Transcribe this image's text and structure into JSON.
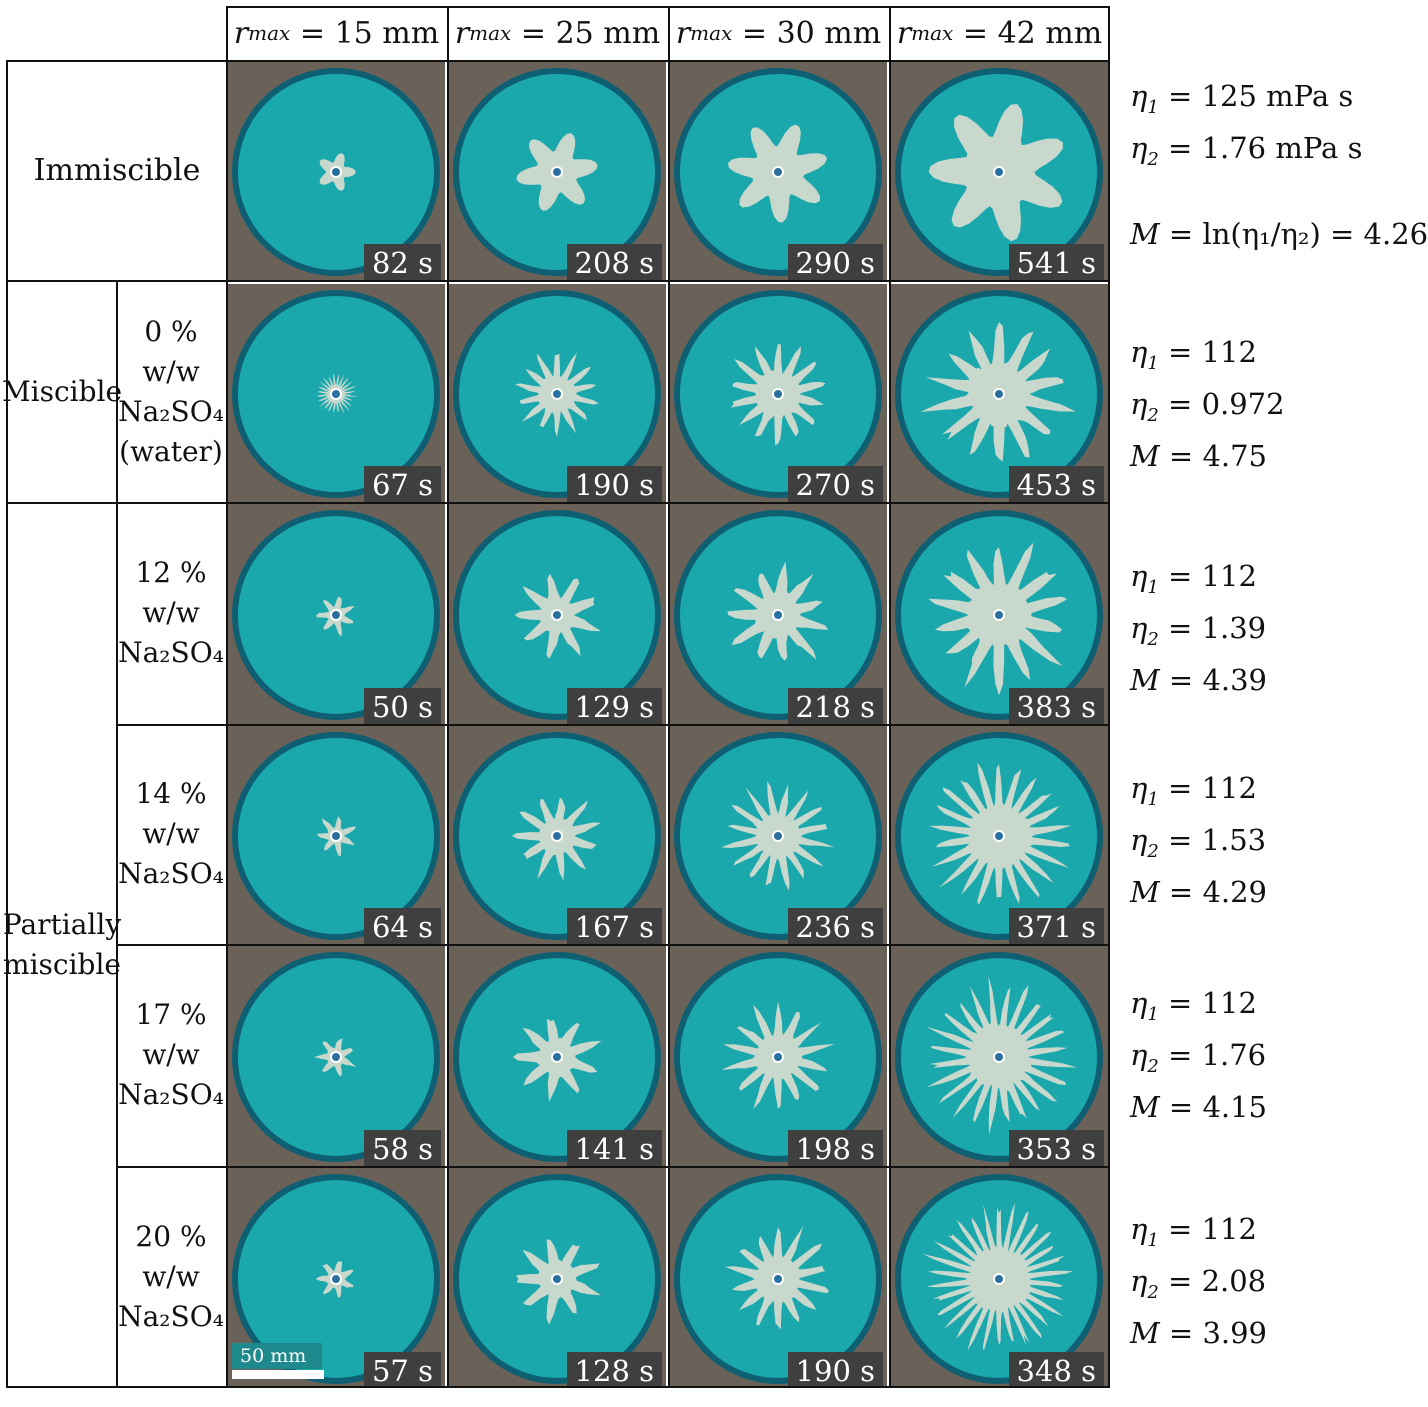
{
  "headers": {
    "columns": [
      {
        "label": "r",
        "subscript": "max",
        "value": "= 15 mm"
      },
      {
        "label": "r",
        "subscript": "max",
        "value": "= 25 mm"
      },
      {
        "label": "r",
        "subscript": "max",
        "value": "= 30 mm"
      },
      {
        "label": "r",
        "subscript": "max",
        "value": "= 42 mm"
      }
    ]
  },
  "rows": [
    {
      "group": "Immiscible",
      "condition": "",
      "times": [
        "82 s",
        "208 s",
        "290 s",
        "541 s"
      ],
      "params": {
        "eta1": "= 125 mPa s",
        "eta2": "= 1.76 mPa s",
        "M": "= ln(η₁/η₂) = 4.26"
      }
    },
    {
      "group": "Miscible",
      "condition": [
        "0 % w/w",
        "Na₂SO₄",
        "(water)"
      ],
      "times": [
        "67 s",
        "190 s",
        "270 s",
        "453 s"
      ],
      "params": {
        "eta1": "= 112",
        "eta2": "= 0.972",
        "M": "= 4.75"
      }
    },
    {
      "group": "Partially miscible",
      "condition": [
        "12 % w/w",
        "Na₂SO₄"
      ],
      "times": [
        "50 s",
        "129 s",
        "218 s",
        "383 s"
      ],
      "params": {
        "eta1": "= 112",
        "eta2": "= 1.39",
        "M": "= 4.39"
      }
    },
    {
      "group": "Partially miscible",
      "condition": [
        "14 % w/w",
        "Na₂SO₄"
      ],
      "times": [
        "64 s",
        "167 s",
        "236 s",
        "371 s"
      ],
      "params": {
        "eta1": "= 112",
        "eta2": "= 1.53",
        "M": "= 4.29"
      }
    },
    {
      "group": "Partially miscible",
      "condition": [
        "17 % w/w",
        "Na₂SO₄"
      ],
      "times": [
        "58 s",
        "141 s",
        "198 s",
        "353 s"
      ],
      "params": {
        "eta1": "= 112",
        "eta2": "= 1.76",
        "M": "= 4.15"
      }
    },
    {
      "group": "Partially miscible",
      "condition": [
        "20 % w/w",
        "Na₂SO₄"
      ],
      "times": [
        "57 s",
        "128 s",
        "190 s",
        "348 s"
      ],
      "params": {
        "eta1": "= 112",
        "eta2": "= 2.08",
        "M": "= 3.99"
      }
    }
  ],
  "labels": {
    "immiscible": "Immiscible",
    "miscible": "Miscible",
    "partially_miscible_1": "Partially",
    "partially_miscible_2": "miscible",
    "scale_bar": "50 mm",
    "eta": "η",
    "M": "M"
  },
  "colors": {
    "dish_fluid": "#1aa8ad",
    "dish_rim": "#0f5f72",
    "finger_fluid": "#c8d8cc",
    "background_frame": "#6a6258",
    "badge": "#3f3f3f"
  }
}
